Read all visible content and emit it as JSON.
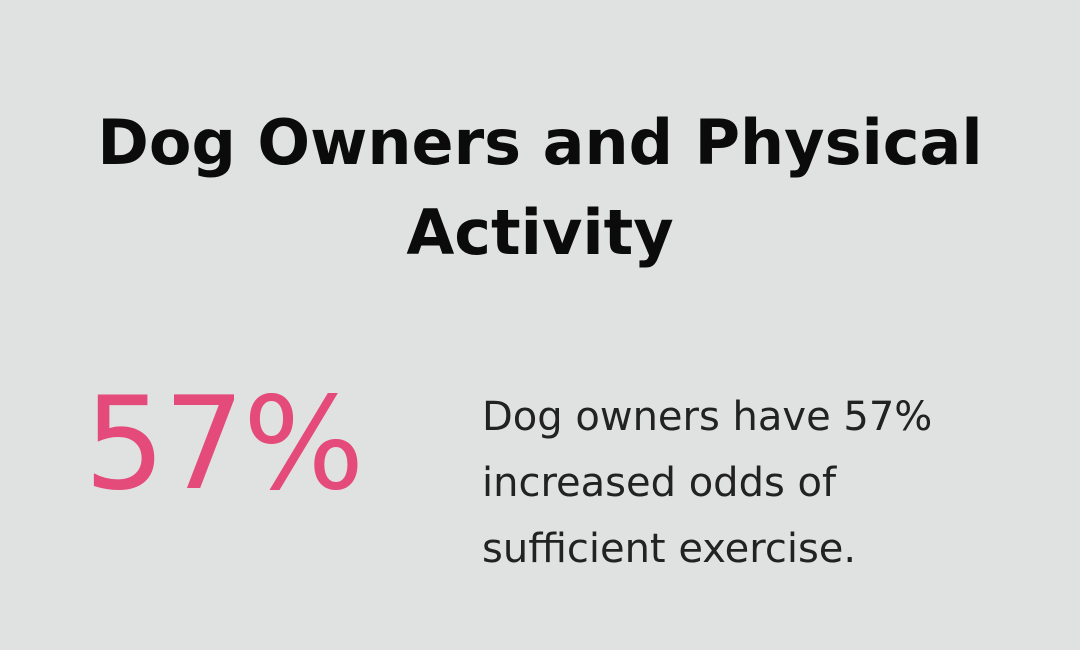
{
  "title": "Dog Owners and Physical Activity",
  "stat": {
    "value": "57%",
    "description": "Dog owners have 57% increased odds of sufficient exercise."
  },
  "colors": {
    "background": "#e0e1e1",
    "accent": "#e44a7a",
    "text": "#111111"
  }
}
